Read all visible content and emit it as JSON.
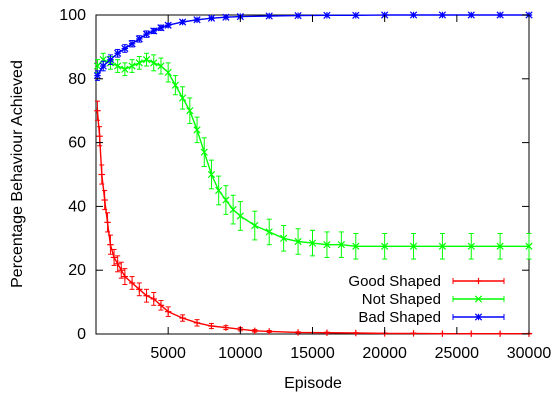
{
  "chart_data": {
    "type": "line",
    "title": "",
    "xlabel": "Episode",
    "ylabel": "Percentage Behaviour Achieved",
    "xlim": [
      0,
      30000
    ],
    "ylim": [
      0,
      100
    ],
    "x_ticks": [
      5000,
      10000,
      15000,
      20000,
      25000,
      30000
    ],
    "y_ticks": [
      0,
      20,
      40,
      60,
      80,
      100
    ],
    "x_tick_labels": [
      "5000",
      "10000",
      "15000",
      "20000",
      "25000",
      "30000"
    ],
    "y_tick_labels": [
      "0",
      "20",
      "40",
      "60",
      "80",
      "100"
    ],
    "grid": false,
    "legend": {
      "position": "bottom-right"
    },
    "error_bars": true,
    "series": [
      {
        "name": "Good Shaped",
        "color": "#ff0000",
        "marker": "plus",
        "x": [
          100,
          250,
          400,
          600,
          800,
          1000,
          1250,
          1500,
          1750,
          2000,
          2500,
          3000,
          3500,
          4000,
          4500,
          5000,
          6000,
          7000,
          8000,
          9000,
          10000,
          11000,
          12000,
          14000,
          16000,
          18000,
          20000,
          22000,
          24000,
          26000,
          28000,
          30000
        ],
        "y": [
          70,
          62,
          50,
          42,
          35,
          28,
          24,
          22,
          20,
          18,
          16,
          14,
          12,
          11,
          9,
          7,
          5,
          3.5,
          2.5,
          2,
          1.5,
          1,
          0.8,
          0.5,
          0.4,
          0.3,
          0.2,
          0.2,
          0.1,
          0.1,
          0.1,
          0.1
        ],
        "err": [
          3,
          3,
          3,
          3,
          3,
          3,
          2.5,
          2.5,
          2.5,
          2.5,
          2,
          2,
          2,
          2,
          1.5,
          1.5,
          1,
          1,
          0.8,
          0.6,
          0.5,
          0.4,
          0.3,
          0.2,
          0.2,
          0.1,
          0.1,
          0.1,
          0.1,
          0.1,
          0.1,
          0.1
        ]
      },
      {
        "name": "Not Shaped",
        "color": "#00ff00",
        "marker": "cross",
        "x": [
          100,
          500,
          1000,
          1500,
          2000,
          2500,
          3000,
          3500,
          4000,
          4500,
          5000,
          5500,
          6000,
          6500,
          7000,
          7500,
          8000,
          8500,
          9000,
          9500,
          10000,
          11000,
          12000,
          13000,
          14000,
          15000,
          16000,
          17000,
          18000,
          20000,
          22000,
          24000,
          26000,
          28000,
          30000
        ],
        "y": [
          84,
          86,
          85,
          84,
          83,
          84,
          85,
          86,
          85,
          84,
          82,
          78,
          74,
          70,
          64,
          57,
          50,
          45,
          42,
          39,
          37,
          34,
          32,
          30,
          29,
          28.5,
          28,
          28,
          27.5,
          27.5,
          27.5,
          27.5,
          27.5,
          27.5,
          27.5
        ],
        "err": [
          2,
          2,
          2,
          2,
          2,
          2,
          2,
          2,
          2.5,
          2.5,
          3,
          3,
          3.5,
          4,
          4,
          4.5,
          4.5,
          4.5,
          4.5,
          4.5,
          4.5,
          4.5,
          4,
          4,
          4,
          4,
          4,
          4,
          4,
          4,
          4,
          4,
          4,
          4,
          4
        ]
      },
      {
        "name": "Bad Shaped",
        "color": "#0000ff",
        "marker": "star",
        "x": [
          100,
          500,
          1000,
          1500,
          2000,
          2500,
          3000,
          3500,
          4000,
          4500,
          5000,
          6000,
          7000,
          8000,
          9000,
          10000,
          12000,
          14000,
          16000,
          18000,
          20000,
          22000,
          24000,
          26000,
          28000,
          30000
        ],
        "y": [
          81,
          84,
          86,
          88,
          89.5,
          91,
          92.5,
          94,
          95,
          96,
          96.8,
          97.8,
          98.5,
          99,
          99.3,
          99.5,
          99.7,
          99.8,
          99.9,
          99.9,
          100,
          100,
          100,
          100,
          100,
          100
        ],
        "err": [
          1.5,
          1.5,
          1.5,
          1.2,
          1.2,
          1,
          1,
          1,
          0.8,
          0.8,
          0.6,
          0.5,
          0.4,
          0.3,
          0.2,
          0.2,
          0.1,
          0.1,
          0.1,
          0.1,
          0.1,
          0.1,
          0.1,
          0.1,
          0.1,
          0.1
        ]
      }
    ]
  }
}
